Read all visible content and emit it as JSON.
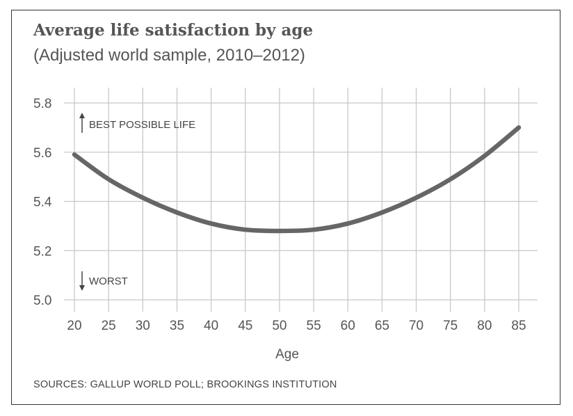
{
  "chart_data": {
    "type": "line",
    "title": "Average life satisfaction by age",
    "subtitle": "(Adjusted world sample, 2010–2012)",
    "xlabel": "Age",
    "ylabel": "",
    "x": [
      20,
      25,
      30,
      35,
      40,
      45,
      50,
      55,
      60,
      65,
      70,
      75,
      80,
      85
    ],
    "values": [
      5.59,
      5.49,
      5.415,
      5.355,
      5.31,
      5.285,
      5.28,
      5.285,
      5.31,
      5.355,
      5.415,
      5.49,
      5.585,
      5.7
    ],
    "xlim": [
      20,
      85
    ],
    "ylim": [
      5.0,
      5.8
    ],
    "x_ticks": [
      "20",
      "25",
      "30",
      "35",
      "40",
      "45",
      "50",
      "55",
      "60",
      "65",
      "70",
      "75",
      "80",
      "85"
    ],
    "y_ticks": [
      "5.0",
      "5.2",
      "5.4",
      "5.6",
      "5.8"
    ],
    "annotations": {
      "best": "BEST POSSIBLE LIFE",
      "worst": "WORST"
    },
    "source": "SOURCES: GALLUP WORLD POLL; BROOKINGS INSTITUTION",
    "line_color": "#666666",
    "grid_color": "#c8c8c8"
  }
}
